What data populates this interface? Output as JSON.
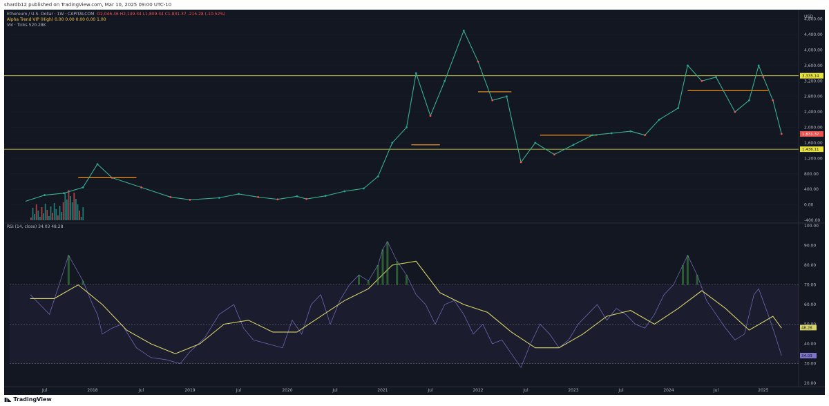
{
  "header": {
    "published": "shardb12 published on TradingView.com, Mar 10, 2025 09:00 UTC-10"
  },
  "footer": {
    "brand": "TradingView"
  },
  "colors": {
    "background": "#131722",
    "bull": "#26a69a",
    "bear": "#ef5350",
    "level_line": "#e8e33a",
    "rsi_line": "#7e74c9",
    "rsi_ma": "#d8d46a",
    "trend_line": "#f7931a"
  },
  "legend": {
    "main_title": "Ethereum / U.S. Dollar · 1W · CAPITALCOM",
    "ohlc": "O2,046.46  H2,149.34  L1,809.34  C1,831.37  -215.28 (-10.52%)",
    "indicator": "Alpha Trend VIP (High)  0.00  0.00  0.00  0.00  1.00",
    "volume": "Vol · Ticks  520.28K",
    "rsi": "RSI (14, close)  34.03  48.28"
  },
  "chart_data": [
    {
      "type": "line",
      "title": "Ethereum / U.S. Dollar · 1W · CAPITALCOM",
      "currency": "USD",
      "x_labels": [
        "Jul",
        "2018",
        "Jul",
        "2019",
        "Jul",
        "2020",
        "Jul",
        "2021",
        "Jul",
        "2022",
        "Jul",
        "2023",
        "Jul",
        "2024",
        "Jul",
        "2025"
      ],
      "y_ticks": [
        "4,800.00",
        "4,400.00",
        "4,000.00",
        "3,600.00",
        "3,200.00",
        "2,800.00",
        "2,400.00",
        "2,000.00",
        "1,600.00",
        "1,200.00",
        "800.00",
        "400.00",
        "0.00",
        "-400.00"
      ],
      "ylim": [
        -400,
        4900
      ],
      "series": [
        {
          "x": [
            2017.3,
            2017.5,
            2017.7,
            2017.9,
            2018.05,
            2018.2,
            2018.5,
            2018.8,
            2019.0,
            2019.3,
            2019.5,
            2019.7,
            2019.9,
            2020.1,
            2020.2,
            2020.4,
            2020.6,
            2020.8,
            2020.95,
            2021.1,
            2021.25,
            2021.35,
            2021.5,
            2021.65,
            2021.85,
            2022.0,
            2022.15,
            2022.3,
            2022.45,
            2022.6,
            2022.8,
            2023.0,
            2023.2,
            2023.4,
            2023.6,
            2023.75,
            2023.9,
            2024.1,
            2024.2,
            2024.35,
            2024.5,
            2024.7,
            2024.85,
            2024.95,
            2025.0,
            2025.1,
            2025.19
          ],
          "values": [
            90,
            250,
            300,
            450,
            1050,
            700,
            450,
            200,
            130,
            180,
            280,
            200,
            140,
            220,
            150,
            230,
            350,
            420,
            730,
            1600,
            2000,
            3400,
            2300,
            3200,
            4500,
            3700,
            2700,
            2800,
            1100,
            1600,
            1300,
            1550,
            1800,
            1850,
            1900,
            1800,
            2200,
            2500,
            3600,
            3200,
            3300,
            2400,
            2700,
            3600,
            3300,
            2700,
            1831
          ]
        }
      ],
      "levels": [
        3335.14,
        1436.11
      ],
      "price_labels": [
        "3,335.14",
        "1,831.37",
        "1,436.11"
      ]
    },
    {
      "type": "line",
      "title": "RSI (14, close)",
      "y_ticks": [
        "100.00",
        "90.00",
        "80.00",
        "70.00",
        "60.00",
        "50.00",
        "40.00",
        "30.00",
        "20.00"
      ],
      "ylim": [
        20,
        100
      ],
      "bands": [
        30,
        50,
        70
      ],
      "series": [
        {
          "name": "RSI",
          "x": [
            2017.35,
            2017.45,
            2017.55,
            2017.65,
            2017.75,
            2017.9,
            2018.0,
            2018.05,
            2018.1,
            2018.2,
            2018.3,
            2018.45,
            2018.6,
            2018.75,
            2018.9,
            2019.0,
            2019.15,
            2019.3,
            2019.45,
            2019.55,
            2019.65,
            2019.8,
            2019.95,
            2020.05,
            2020.15,
            2020.25,
            2020.35,
            2020.45,
            2020.55,
            2020.65,
            2020.75,
            2020.85,
            2020.95,
            2021.0,
            2021.05,
            2021.15,
            2021.25,
            2021.35,
            2021.45,
            2021.55,
            2021.65,
            2021.75,
            2021.85,
            2021.95,
            2022.05,
            2022.15,
            2022.25,
            2022.35,
            2022.45,
            2022.55,
            2022.65,
            2022.75,
            2022.85,
            2022.95,
            2023.05,
            2023.15,
            2023.25,
            2023.35,
            2023.45,
            2023.55,
            2023.65,
            2023.75,
            2023.85,
            2023.95,
            2024.05,
            2024.15,
            2024.2,
            2024.3,
            2024.4,
            2024.5,
            2024.6,
            2024.7,
            2024.8,
            2024.9,
            2024.95,
            2025.05,
            2025.12,
            2025.19
          ],
          "values": [
            65,
            60,
            55,
            70,
            85,
            72,
            60,
            55,
            45,
            48,
            50,
            38,
            33,
            32,
            30,
            36,
            43,
            55,
            60,
            48,
            42,
            40,
            38,
            52,
            45,
            60,
            65,
            50,
            62,
            70,
            75,
            72,
            80,
            88,
            92,
            82,
            75,
            65,
            60,
            50,
            60,
            62,
            55,
            45,
            50,
            40,
            42,
            35,
            28,
            40,
            50,
            45,
            38,
            42,
            50,
            55,
            60,
            52,
            58,
            55,
            50,
            48,
            55,
            65,
            70,
            80,
            85,
            75,
            62,
            55,
            48,
            42,
            45,
            65,
            68,
            55,
            45,
            34
          ],
          "color": "#7e74c9"
        },
        {
          "name": "RSI-based MA",
          "x": [
            2017.35,
            2017.6,
            2017.85,
            2018.1,
            2018.35,
            2018.6,
            2018.85,
            2019.1,
            2019.35,
            2019.6,
            2019.85,
            2020.1,
            2020.35,
            2020.6,
            2020.85,
            2021.1,
            2021.35,
            2021.6,
            2021.85,
            2022.1,
            2022.35,
            2022.6,
            2022.85,
            2023.1,
            2023.35,
            2023.6,
            2023.85,
            2024.1,
            2024.35,
            2024.6,
            2024.85,
            2025.1,
            2025.19
          ],
          "values": [
            63,
            63,
            70,
            60,
            47,
            40,
            35,
            40,
            50,
            52,
            46,
            46,
            54,
            62,
            68,
            80,
            82,
            66,
            60,
            56,
            46,
            38,
            38,
            45,
            54,
            57,
            50,
            58,
            67,
            58,
            47,
            54,
            48
          ],
          "color": "#d8d46a"
        }
      ],
      "last_values": [
        "34.03",
        "48.28"
      ]
    }
  ]
}
